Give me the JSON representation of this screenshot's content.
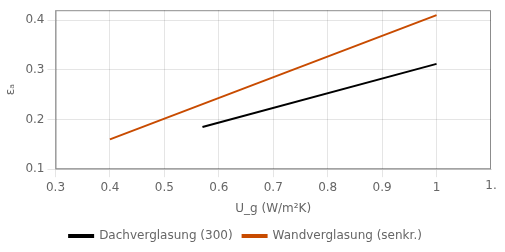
{
  "chart_data": {
    "type": "line",
    "xlabel": "U_g (W/m²K)",
    "ylabel": "εₐ",
    "series": [
      {
        "name": "Dachverglasung (300)",
        "color": "#000000",
        "x": [
          0.57,
          1.0
        ],
        "values": [
          0.185,
          0.312
        ]
      },
      {
        "name": "Wandverglasung (senkr.)",
        "color": "#c84b00",
        "x": [
          0.4,
          1.0
        ],
        "values": [
          0.16,
          0.41
        ]
      }
    ],
    "xlim": [
      0.3,
      1.1
    ],
    "xticks": [
      0.3,
      0.4,
      0.5,
      0.6,
      0.7,
      0.8,
      0.9,
      1
    ],
    "ylim": [
      0.1,
      0.42
    ],
    "yticks": [
      0.1,
      0.2,
      0.3,
      0.4
    ],
    "grid": true,
    "legend": "bottom",
    "annotations": [
      {
        "text": "1.",
        "x": 1.1
      }
    ]
  }
}
